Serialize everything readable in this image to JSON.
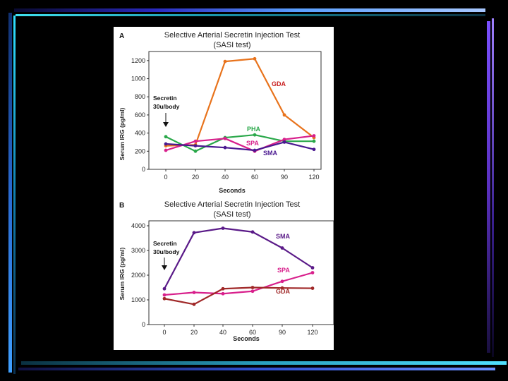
{
  "chart_data": [
    {
      "type": "line",
      "panel_label": "A",
      "title": "Selective Arterial Secretin Injection Test",
      "subtitle": "(SASI test)",
      "xlabel": "Seconds",
      "ylabel": "Serum IRG (pg/ml)",
      "categories": [
        "0",
        "20",
        "40",
        "60",
        "90",
        "120"
      ],
      "yticks": [
        "0",
        "200",
        "400",
        "600",
        "800",
        "1000",
        "1200"
      ],
      "ylim": [
        0,
        1300
      ],
      "annotation": [
        "Secretin",
        "30u/body"
      ],
      "series": [
        {
          "name": "GDA",
          "color": "#e8731c",
          "label_color": "#c81e1e",
          "values": [
            260,
            270,
            1190,
            1220,
            600,
            350
          ]
        },
        {
          "name": "PHA",
          "color": "#2aa84a",
          "label_color": "#2aa84a",
          "values": [
            360,
            200,
            350,
            380,
            310,
            310
          ]
        },
        {
          "name": "SPA",
          "color": "#d8208c",
          "label_color": "#d8208c",
          "values": [
            210,
            310,
            340,
            200,
            330,
            370
          ]
        },
        {
          "name": "SMA",
          "color": "#4a1890",
          "label_color": "#4a1890",
          "values": [
            280,
            260,
            240,
            210,
            300,
            220
          ]
        }
      ]
    },
    {
      "type": "line",
      "panel_label": "B",
      "title": "Selective Arterial Secretin Injection Test",
      "subtitle": "(SASI test)",
      "xlabel": "Seconds",
      "ylabel": "Serum IRG (pg/ml)",
      "categories": [
        "0",
        "20",
        "40",
        "60",
        "90",
        "120"
      ],
      "yticks": [
        "0",
        "1000",
        "2000",
        "3000",
        "4000"
      ],
      "ylim": [
        0,
        4200
      ],
      "annotation": [
        "Secretin",
        "30u/body"
      ],
      "series": [
        {
          "name": "SMA",
          "color": "#5a1a88",
          "label_color": "#5a1a88",
          "values": [
            1450,
            3720,
            3900,
            3750,
            3100,
            2300
          ]
        },
        {
          "name": "SPA",
          "color": "#d8208c",
          "label_color": "#d8208c",
          "values": [
            1200,
            1300,
            1250,
            1350,
            1750,
            2100
          ]
        },
        {
          "name": "GDA",
          "color": "#a02828",
          "label_color": "#a02828",
          "values": [
            1050,
            820,
            1450,
            1500,
            1480,
            1470
          ]
        }
      ]
    }
  ]
}
